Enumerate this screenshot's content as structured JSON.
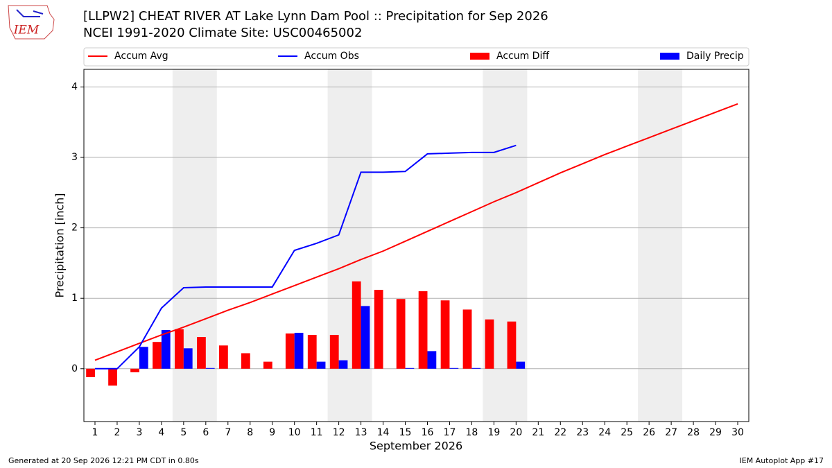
{
  "chart_data": {
    "type": "bar",
    "title": "[LLPW2] CHEAT RIVER  AT Lake Lynn Dam Pool :: Precipitation for Sep 2026",
    "subtitle": "NCEI 1991-2020 Climate Site: USC00465002",
    "logo_text": "IEM",
    "xlabel": "September 2026",
    "ylabel": "Precipitation [inch]",
    "footer_left": "Generated at 20 Sep 2026 12:21 PM CDT in 0.80s",
    "footer_right": "IEM Autoplot App #17",
    "x": [
      1,
      2,
      3,
      4,
      5,
      6,
      7,
      8,
      9,
      10,
      11,
      12,
      13,
      14,
      15,
      16,
      17,
      18,
      19,
      20,
      21,
      22,
      23,
      24,
      25,
      26,
      27,
      28,
      29,
      30
    ],
    "xlim": [
      0.5,
      30.5
    ],
    "xticks": [
      1,
      2,
      3,
      4,
      5,
      6,
      7,
      8,
      9,
      10,
      11,
      12,
      13,
      14,
      15,
      16,
      17,
      18,
      19,
      20,
      21,
      22,
      23,
      24,
      25,
      26,
      27,
      28,
      29,
      30
    ],
    "ylim": [
      -0.75,
      4.25
    ],
    "yticks": [
      0,
      1,
      2,
      3,
      4
    ],
    "grid": true,
    "shaded_ranges": [
      [
        4.5,
        6.5
      ],
      [
        11.5,
        13.5
      ],
      [
        18.5,
        20.5
      ],
      [
        25.5,
        27.5
      ]
    ],
    "shade_color": "#eeeeee",
    "series": [
      {
        "name": "Accum Avg",
        "type": "line",
        "color": "#ff0000",
        "values": [
          0.12,
          0.24,
          0.36,
          0.48,
          0.59,
          0.71,
          0.83,
          0.94,
          1.06,
          1.18,
          1.3,
          1.42,
          1.55,
          1.67,
          1.81,
          1.95,
          2.09,
          2.23,
          2.37,
          2.5,
          2.64,
          2.78,
          2.91,
          3.04,
          3.16,
          3.28,
          3.4,
          3.52,
          3.64,
          3.76
        ]
      },
      {
        "name": "Accum Obs",
        "type": "line",
        "color": "#0000ff",
        "values": [
          0,
          0,
          0.31,
          0.86,
          1.15,
          1.16,
          1.16,
          1.16,
          1.16,
          1.68,
          1.78,
          1.9,
          2.79,
          2.79,
          2.8,
          3.05,
          3.06,
          3.07,
          3.07,
          3.17,
          null,
          null,
          null,
          null,
          null,
          null,
          null,
          null,
          null,
          null
        ]
      },
      {
        "name": "Accum Diff",
        "type": "bar",
        "color": "#ff0000",
        "values": [
          -0.12,
          -0.24,
          -0.05,
          0.38,
          0.56,
          0.45,
          0.33,
          0.22,
          0.1,
          0.5,
          0.48,
          0.48,
          1.24,
          1.12,
          0.99,
          1.1,
          0.97,
          0.84,
          0.7,
          0.67,
          null,
          null,
          null,
          null,
          null,
          null,
          null,
          null,
          null,
          null
        ]
      },
      {
        "name": "Daily Precip",
        "type": "bar",
        "color": "#0000ff",
        "values": [
          0,
          0,
          0.31,
          0.55,
          0.29,
          0.01,
          0,
          0,
          0,
          0.51,
          0.1,
          0.12,
          0.89,
          0,
          0.01,
          0.25,
          0.01,
          0.01,
          0,
          0.1,
          null,
          null,
          null,
          null,
          null,
          null,
          null,
          null,
          null,
          null
        ]
      }
    ]
  }
}
